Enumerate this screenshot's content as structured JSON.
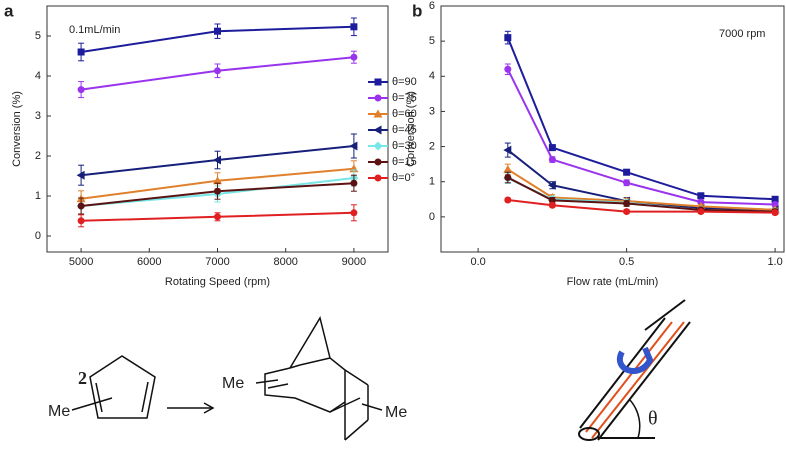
{
  "chart_data": [
    {
      "type": "line",
      "panel": "a",
      "xlabel": "Rotating Speed (rpm)",
      "ylabel": "Conversion (%)",
      "annotation": "0.1mL/min",
      "x": [
        5000,
        7000,
        9000
      ],
      "xlim": [
        4500,
        9500
      ],
      "xticks": [
        5000,
        6000,
        7000,
        8000,
        9000
      ],
      "ylim": [
        -0.4,
        5.75
      ],
      "yticks": [
        0,
        1,
        2,
        3,
        4,
        5
      ],
      "legend": "right",
      "series": [
        {
          "name": "θ=90",
          "color": "#1c1c9c",
          "marker": "square",
          "values": [
            4.6,
            5.12,
            5.23
          ],
          "errors": [
            0.22,
            0.18,
            0.22
          ]
        },
        {
          "name": "θ=75",
          "color": "#9933ee",
          "marker": "circle",
          "values": [
            3.66,
            4.13,
            4.47
          ],
          "errors": [
            0.2,
            0.17,
            0.15
          ]
        },
        {
          "name": "θ=60",
          "color": "#e0802c",
          "marker": "triangle",
          "values": [
            0.93,
            1.38,
            1.68
          ],
          "errors": [
            0.2,
            0.2,
            0.2
          ]
        },
        {
          "name": "θ=45",
          "color": "#16207a",
          "marker": "triangle-left",
          "values": [
            1.52,
            1.9,
            2.25
          ],
          "errors": [
            0.25,
            0.22,
            0.3
          ]
        },
        {
          "name": "θ=30",
          "color": "#77e6e6",
          "marker": "diamond",
          "values": [
            0.75,
            1.05,
            1.45
          ],
          "errors": [
            0.2,
            0.2,
            0.2
          ]
        },
        {
          "name": "θ=15",
          "color": "#5a1212",
          "marker": "circle",
          "values": [
            0.75,
            1.12,
            1.32
          ],
          "errors": [
            0.2,
            0.2,
            0.2
          ]
        },
        {
          "name": "θ=0°",
          "color": "#e02020",
          "marker": "circle",
          "values": [
            0.38,
            0.48,
            0.58
          ],
          "errors": [
            0.15,
            0.1,
            0.2
          ]
        }
      ]
    },
    {
      "type": "line",
      "panel": "b",
      "xlabel": "Flow rate (mL/min)",
      "ylabel": "Conversion (%)",
      "annotation": "7000 rpm",
      "x": [
        0.1,
        0.25,
        0.5,
        0.75,
        1.0
      ],
      "xlim": [
        -0.125,
        1.03
      ],
      "xticks": [
        {
          "value": 0,
          "label": "0.0"
        },
        0.5,
        {
          "value": 1,
          "label": "1.0"
        }
      ],
      "ylim": [
        -1,
        6
      ],
      "yticks": [
        0,
        1,
        2,
        3,
        4,
        5,
        6
      ],
      "series": [
        {
          "color": "#1c1c9c",
          "marker": "square",
          "values": [
            5.1,
            1.97,
            1.27,
            0.6,
            0.5
          ],
          "errors": [
            0.18,
            0.08,
            0.08,
            0.05,
            0.05
          ]
        },
        {
          "color": "#9933ee",
          "marker": "circle",
          "values": [
            4.2,
            1.63,
            0.97,
            0.42,
            0.35
          ],
          "errors": [
            0.15,
            0.08,
            0.08,
            0.05,
            0.05
          ]
        },
        {
          "color": "#16207a",
          "marker": "triangle-left",
          "values": [
            1.9,
            0.9,
            0.45,
            0.25,
            0.2
          ],
          "errors": [
            0.2,
            0.1,
            0.1,
            0.05,
            0.05
          ]
        },
        {
          "color": "#e0802c",
          "marker": "triangle",
          "values": [
            1.35,
            0.55,
            0.45,
            0.3,
            0.2
          ],
          "errors": [
            0.15,
            0.08,
            0.08,
            0.05,
            0.05
          ]
        },
        {
          "color": "#77e6e6",
          "marker": "diamond",
          "values": [
            1.1,
            0.5,
            0.4,
            0.2,
            0.15
          ],
          "errors": [
            0.15,
            0.08,
            0.08,
            0.05,
            0.05
          ]
        },
        {
          "color": "#5a1212",
          "marker": "circle",
          "values": [
            1.12,
            0.47,
            0.38,
            0.2,
            0.15
          ],
          "errors": [
            0.15,
            0.08,
            0.08,
            0.05,
            0.05
          ]
        },
        {
          "color": "#e02020",
          "marker": "circle",
          "values": [
            0.48,
            0.33,
            0.15,
            0.15,
            0.12
          ],
          "errors": [
            0.05,
            0.05,
            0.05,
            0.05,
            0.05
          ]
        }
      ]
    }
  ],
  "scheme": {
    "compound": "2",
    "substituent": "Me",
    "angle": "θ"
  }
}
